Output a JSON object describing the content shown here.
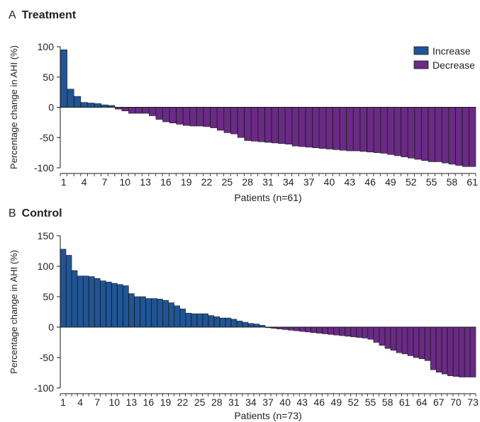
{
  "colors": {
    "increase": "#1f5596",
    "decrease": "#6a2a86",
    "stroke": "#1a1a1a",
    "text": "#231f20"
  },
  "chart_data": [
    {
      "panel": "A",
      "title": "Treatment",
      "type": "bar",
      "xlabel": "Patients (n=61)",
      "ylabel": "Percentage change in AHI (%)",
      "ylim": [
        -100,
        100
      ],
      "yticks": [
        -100,
        -50,
        0,
        50,
        100
      ],
      "xticks": [
        1,
        4,
        7,
        10,
        13,
        16,
        19,
        22,
        25,
        28,
        31,
        34,
        37,
        40,
        43,
        46,
        49,
        52,
        55,
        58,
        61
      ],
      "legend": {
        "position": "top-right",
        "entries": [
          {
            "label": "Increase",
            "color": "#1f5596"
          },
          {
            "label": "Decrease",
            "color": "#6a2a86"
          }
        ]
      },
      "values": [
        95,
        30,
        18,
        8,
        7,
        6,
        4,
        3,
        -3,
        -6,
        -10,
        -10,
        -10,
        -14,
        -20,
        -24,
        -26,
        -28,
        -30,
        -31,
        -31,
        -32,
        -34,
        -38,
        -42,
        -44,
        -50,
        -55,
        -56,
        -57,
        -58,
        -59,
        -60,
        -61,
        -64,
        -65,
        -66,
        -67,
        -68,
        -69,
        -70,
        -71,
        -72,
        -72,
        -73,
        -74,
        -75,
        -76,
        -78,
        -80,
        -82,
        -84,
        -86,
        -88,
        -90,
        -90,
        -92,
        -94,
        -96,
        -98,
        -98
      ]
    },
    {
      "panel": "B",
      "title": "Control",
      "type": "bar",
      "xlabel": "Patients (n=73)",
      "ylabel": "Percentage change in AHI (%)",
      "ylim": [
        -100,
        150
      ],
      "yticks": [
        -100,
        -50,
        0,
        50,
        100,
        150
      ],
      "xticks": [
        1,
        4,
        7,
        10,
        13,
        16,
        19,
        22,
        25,
        28,
        31,
        34,
        37,
        40,
        43,
        46,
        49,
        52,
        55,
        58,
        61,
        64,
        67,
        70,
        73
      ],
      "values": [
        128,
        118,
        93,
        84,
        84,
        83,
        80,
        76,
        74,
        72,
        70,
        68,
        55,
        50,
        50,
        47,
        47,
        46,
        44,
        40,
        35,
        30,
        23,
        22,
        22,
        22,
        19,
        17,
        15,
        15,
        13,
        10,
        8,
        6,
        5,
        3,
        -1,
        -2,
        -3,
        -4,
        -5,
        -6,
        -7,
        -8,
        -9,
        -10,
        -11,
        -12,
        -13,
        -14,
        -15,
        -16,
        -17,
        -18,
        -20,
        -25,
        -30,
        -35,
        -38,
        -42,
        -44,
        -47,
        -50,
        -52,
        -55,
        -70,
        -74,
        -77,
        -80,
        -81,
        -82,
        -82,
        -82
      ]
    }
  ]
}
